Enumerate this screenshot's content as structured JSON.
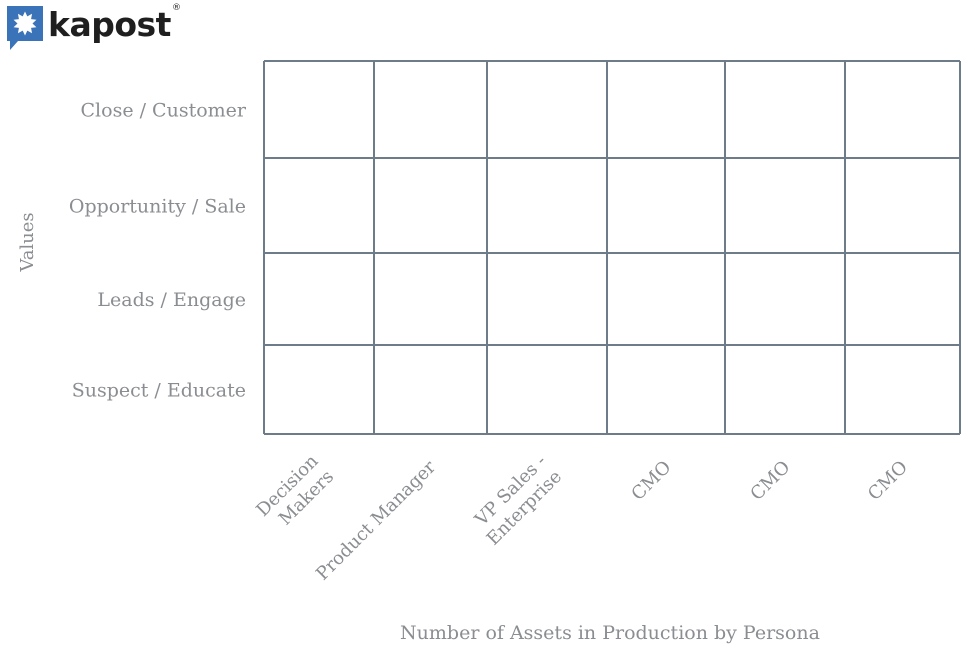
{
  "brand": {
    "name": "kapost",
    "reg": "®",
    "icon": "starburst-speech-bubble-icon",
    "color": "#3b73b9"
  },
  "colors": {
    "grid": "#6d7c88",
    "label": "#8a8d91"
  },
  "chart_data": {
    "type": "table",
    "title": "",
    "xlabel": "Number of Assets in Production by Persona",
    "ylabel": "Values",
    "categories": [
      "Decision Makers",
      "Product Manager",
      "VP Sales - Enterprise",
      "CMO",
      "CMO",
      "CMO"
    ],
    "rows": [
      "Close / Customer",
      "Opportunity / Sale",
      "Leads / Engage",
      "Suspect / Educate"
    ],
    "cells": [
      [
        "",
        "",
        "",
        "",
        "",
        ""
      ],
      [
        "",
        "",
        "",
        "",
        "",
        ""
      ],
      [
        "",
        "",
        "",
        "",
        "",
        ""
      ],
      [
        "",
        "",
        "",
        "",
        "",
        ""
      ]
    ],
    "grid": true
  }
}
